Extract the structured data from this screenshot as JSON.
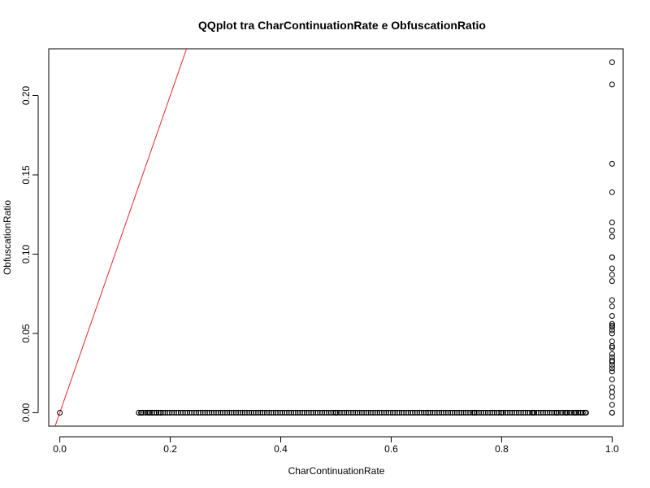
{
  "chart_data": {
    "type": "scatter",
    "title": "QQplot tra CharContinuationRate e ObfuscationRatio",
    "xlabel": "CharContinuationRate",
    "ylabel": "ObfuscationRatio",
    "xlim": [
      -0.02,
      1.02
    ],
    "ylim": [
      -0.0085,
      0.2295
    ],
    "x_ticks": [
      0.0,
      0.2,
      0.4,
      0.6,
      0.8,
      1.0
    ],
    "x_tick_labels": [
      "0.0",
      "0.2",
      "0.4",
      "0.6",
      "0.8",
      "1.0"
    ],
    "y_ticks": [
      0.0,
      0.05,
      0.1,
      0.15,
      0.2
    ],
    "y_tick_labels": [
      "0.00",
      "0.05",
      "0.10",
      "0.15",
      "0.20"
    ],
    "grid": false,
    "legend": "none",
    "point_color": "#000000",
    "reference_line": {
      "color": "#e8262b",
      "intercept": 0.0,
      "slope": 1.0
    },
    "origin_point": {
      "x": 0.0,
      "y": 0.0
    },
    "zero_band": {
      "x_from": 0.143,
      "x_to": 0.953,
      "y": 0.0
    },
    "zero_points_extra": [
      0.143,
      0.148,
      0.161,
      0.167,
      0.175,
      0.182,
      0.5,
      0.667,
      0.75,
      0.8,
      0.857,
      0.9,
      0.917,
      0.933,
      0.944,
      0.953,
      1.0
    ],
    "vertical_points": {
      "x": 1.0,
      "y": [
        0.221,
        0.207,
        0.157,
        0.139,
        0.12,
        0.115,
        0.111,
        0.098,
        0.098,
        0.091,
        0.087,
        0.083,
        0.071,
        0.067,
        0.061,
        0.056,
        0.055,
        0.054,
        0.052,
        0.05,
        0.045,
        0.042,
        0.041,
        0.037,
        0.035,
        0.033,
        0.032,
        0.03,
        0.028,
        0.026,
        0.021,
        0.016,
        0.013,
        0.01,
        0.005,
        0.0
      ]
    }
  }
}
